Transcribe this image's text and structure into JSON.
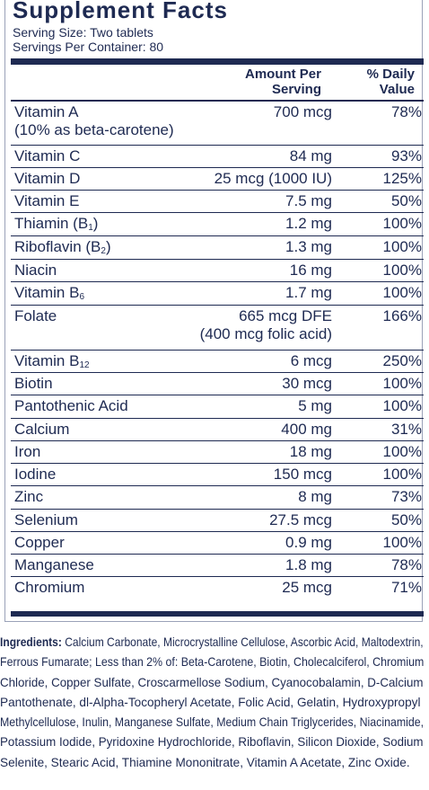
{
  "title": "Supplement Facts",
  "serving_size": "Serving Size: Two tablets",
  "servings_per_container": "Servings Per Container: 80",
  "columns": {
    "amount_line1": "Amount Per",
    "amount_line2": "Serving",
    "dv_line1": "% Daily",
    "dv_line2": "Value"
  },
  "rows": [
    {
      "name": "Vitamin A",
      "name_sub": "",
      "name_after": "",
      "amount": "700 mcg",
      "dv": "78%",
      "note": "(10% as beta-carotene)"
    },
    {
      "name": "Vitamin C",
      "name_sub": "",
      "name_after": "",
      "amount": "84 mg",
      "dv": "93%"
    },
    {
      "name": "Vitamin D",
      "name_sub": "",
      "name_after": "",
      "amount": "25 mcg (1000 IU)",
      "dv": "125%"
    },
    {
      "name": "Vitamin E",
      "name_sub": "",
      "name_after": "",
      "amount": "7.5 mg",
      "dv": "50%"
    },
    {
      "name": "Thiamin (B",
      "name_sub": "1",
      "name_after": ")",
      "amount": "1.2 mg",
      "dv": "100%"
    },
    {
      "name": "Riboflavin (B",
      "name_sub": "2",
      "name_after": ")",
      "amount": "1.3 mg",
      "dv": "100%"
    },
    {
      "name": "Niacin",
      "name_sub": "",
      "name_after": "",
      "amount": "16 mg",
      "dv": "100%"
    },
    {
      "name": "Vitamin B",
      "name_sub": "6",
      "name_after": "",
      "amount": "1.7 mg",
      "dv": "100%"
    },
    {
      "name": "Folate",
      "name_sub": "",
      "name_after": "",
      "amount": "665 mcg DFE",
      "dv": "166%",
      "amount_note": "(400 mcg folic acid)"
    },
    {
      "name": "Vitamin B",
      "name_sub": "12",
      "name_after": "",
      "amount": "6 mcg",
      "dv": "250%"
    },
    {
      "name": "Biotin",
      "name_sub": "",
      "name_after": "",
      "amount": "30 mcg",
      "dv": "100%"
    },
    {
      "name": "Pantothenic Acid",
      "name_sub": "",
      "name_after": "",
      "amount": "5 mg",
      "dv": "100%"
    },
    {
      "name": "Calcium",
      "name_sub": "",
      "name_after": "",
      "amount": "400 mg",
      "dv": "31%"
    },
    {
      "name": "Iron",
      "name_sub": "",
      "name_after": "",
      "amount": "18 mg",
      "dv": "100%"
    },
    {
      "name": "Iodine",
      "name_sub": "",
      "name_after": "",
      "amount": "150 mcg",
      "dv": "100%"
    },
    {
      "name": "Zinc",
      "name_sub": "",
      "name_after": "",
      "amount": "8 mg",
      "dv": "73%"
    },
    {
      "name": "Selenium",
      "name_sub": "",
      "name_after": "",
      "amount": "27.5 mcg",
      "dv": "50%"
    },
    {
      "name": "Copper",
      "name_sub": "",
      "name_after": "",
      "amount": "0.9 mg",
      "dv": "100%"
    },
    {
      "name": "Manganese",
      "name_sub": "",
      "name_after": "",
      "amount": "1.8 mg",
      "dv": "78%"
    },
    {
      "name": "Chromium",
      "name_sub": "",
      "name_after": "",
      "amount": "25 mcg",
      "dv": "71%"
    }
  ],
  "ingredients": {
    "label": "Ingredients:",
    "lines": [
      " Calcium Carbonate, Microcrystalline Cellulose, Ascorbic Acid, Maltodextrin,",
      "Ferrous Fumarate; Less than 2% of: Beta-Carotene, Biotin, Cholecalciferol, Chromium",
      "Chloride, Copper Sulfate, Croscarmellose Sodium, Cyanocobalamin, D-Calcium",
      "Pantothenate, dl-Alpha-Tocopheryl Acetate, Folic Acid, Gelatin, Hydroxypropyl",
      "Methylcellulose, Inulin, Manganese Sulfate, Medium Chain Triglycerides, Niacinamide,",
      "Potassium Iodide, Pyridoxine Hydrochloride, Riboflavin, Silicon Dioxide, Sodium",
      "Selenite, Stearic Acid, Thiamine Mononitrate, Vitamin A Acetate, Zinc Oxide."
    ]
  },
  "colors": {
    "ink": "#1e2a52",
    "background": "#ffffff"
  }
}
